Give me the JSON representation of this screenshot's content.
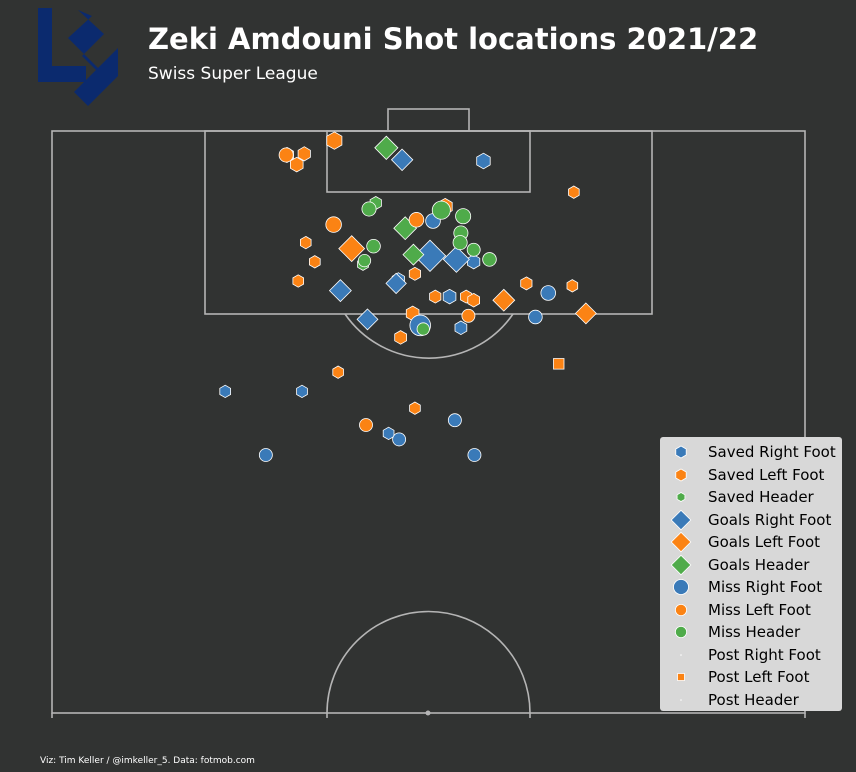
{
  "header": {
    "title": "Zeki Amdouni Shot locations 2021/22",
    "subtitle": "Swiss Super League"
  },
  "footer": {
    "credit": "Viz: Tim Keller / @imkeller_5. Data: fotmob.com"
  },
  "logo": {
    "name": "fc-lausanne-sport-logo",
    "color": "#0b2a6e"
  },
  "colors": {
    "background": "#313332",
    "lines": "#b5b5b5",
    "right_foot": "#3a7ab8",
    "left_foot": "#fb8314",
    "header": "#4fab4a",
    "legend_bg": "#d8d8d8"
  },
  "chart_data": {
    "type": "scatter",
    "pitch": "half-pitch-vertical",
    "x_range": [
      0,
      100
    ],
    "y_range": [
      50,
      103
    ],
    "encoding": {
      "marker": {
        "Saved": "hexagon",
        "Goals": "diamond",
        "Miss": "circle",
        "Post": "square"
      },
      "color": {
        "Right Foot": "right_foot",
        "Left Foot": "left_foot",
        "Header": "header"
      },
      "size": "xG"
    },
    "legend": [
      "Saved Right Foot",
      "Saved Left Foot",
      "Saved Header",
      "Goals Right Foot",
      "Goals Left Foot",
      "Goals Header",
      "Miss Right Foot",
      "Miss Left Foot",
      "Miss Header",
      "Post Right Foot",
      "Post Left Foot",
      "Post Header"
    ],
    "legend_position": "lower-right",
    "shots": [
      {
        "x": 31.2,
        "y": 96.5,
        "outcome": "Saved",
        "body": "Left Foot",
        "xg": 0.08
      },
      {
        "x": 33.5,
        "y": 96.6,
        "outcome": "Saved",
        "body": "Left Foot",
        "xg": 0.06
      },
      {
        "x": 32.5,
        "y": 95.7,
        "outcome": "Saved",
        "body": "Left Foot",
        "xg": 0.07
      },
      {
        "x": 37.5,
        "y": 97.7,
        "outcome": "Saved",
        "body": "Left Foot",
        "xg": 0.14
      },
      {
        "x": 33.7,
        "y": 89.2,
        "outcome": "Saved",
        "body": "Left Foot",
        "xg": 0.03
      },
      {
        "x": 34.9,
        "y": 87.6,
        "outcome": "Saved",
        "body": "Left Foot",
        "xg": 0.03
      },
      {
        "x": 32.7,
        "y": 86.0,
        "outcome": "Saved",
        "body": "Left Foot",
        "xg": 0.03
      },
      {
        "x": 48.2,
        "y": 86.6,
        "outcome": "Saved",
        "body": "Left Foot",
        "xg": 0.04
      },
      {
        "x": 52.2,
        "y": 92.2,
        "outcome": "Saved",
        "body": "Left Foot",
        "xg": 0.11
      },
      {
        "x": 50.9,
        "y": 84.7,
        "outcome": "Saved",
        "body": "Left Foot",
        "xg": 0.04
      },
      {
        "x": 55.0,
        "y": 84.7,
        "outcome": "Saved",
        "body": "Left Foot",
        "xg": 0.04
      },
      {
        "x": 56.0,
        "y": 84.4,
        "outcome": "Saved",
        "body": "Left Foot",
        "xg": 0.05
      },
      {
        "x": 47.9,
        "y": 83.3,
        "outcome": "Saved",
        "body": "Left Foot",
        "xg": 0.07
      },
      {
        "x": 46.3,
        "y": 81.3,
        "outcome": "Saved",
        "body": "Left Foot",
        "xg": 0.05
      },
      {
        "x": 63.0,
        "y": 85.8,
        "outcome": "Saved",
        "body": "Left Foot",
        "xg": 0.04
      },
      {
        "x": 69.3,
        "y": 93.4,
        "outcome": "Saved",
        "body": "Left Foot",
        "xg": 0.03
      },
      {
        "x": 69.1,
        "y": 85.6,
        "outcome": "Saved",
        "body": "Left Foot",
        "xg": 0.03
      },
      {
        "x": 38.0,
        "y": 78.4,
        "outcome": "Saved",
        "body": "Left Foot",
        "xg": 0.03
      },
      {
        "x": 48.2,
        "y": 75.4,
        "outcome": "Saved",
        "body": "Left Foot",
        "xg": 0.03
      },
      {
        "x": 57.3,
        "y": 96.0,
        "outcome": "Saved",
        "body": "Right Foot",
        "xg": 0.09
      },
      {
        "x": 46.0,
        "y": 86.1,
        "outcome": "Saved",
        "body": "Right Foot",
        "xg": 0.06
      },
      {
        "x": 52.8,
        "y": 84.7,
        "outcome": "Saved",
        "body": "Right Foot",
        "xg": 0.07
      },
      {
        "x": 56.0,
        "y": 87.6,
        "outcome": "Saved",
        "body": "Right Foot",
        "xg": 0.06
      },
      {
        "x": 54.3,
        "y": 82.1,
        "outcome": "Saved",
        "body": "Right Foot",
        "xg": 0.05
      },
      {
        "x": 23.0,
        "y": 76.8,
        "outcome": "Saved",
        "body": "Right Foot",
        "xg": 0.03
      },
      {
        "x": 33.2,
        "y": 76.8,
        "outcome": "Saved",
        "body": "Right Foot",
        "xg": 0.03
      },
      {
        "x": 44.7,
        "y": 73.3,
        "outcome": "Saved",
        "body": "Right Foot",
        "xg": 0.03
      },
      {
        "x": 43.0,
        "y": 92.5,
        "outcome": "Saved",
        "body": "Header",
        "xg": 0.04
      },
      {
        "x": 41.3,
        "y": 87.4,
        "outcome": "Saved",
        "body": "Header",
        "xg": 0.03
      },
      {
        "x": 46.5,
        "y": 96.1,
        "outcome": "Goals",
        "body": "Right Foot",
        "xg": 0.11
      },
      {
        "x": 50.2,
        "y": 88.1,
        "outcome": "Goals",
        "body": "Right Foot",
        "xg": 0.4
      },
      {
        "x": 53.7,
        "y": 87.8,
        "outcome": "Goals",
        "body": "Right Foot",
        "xg": 0.22
      },
      {
        "x": 38.3,
        "y": 85.2,
        "outcome": "Goals",
        "body": "Right Foot",
        "xg": 0.12
      },
      {
        "x": 45.7,
        "y": 85.8,
        "outcome": "Goals",
        "body": "Right Foot",
        "xg": 0.09
      },
      {
        "x": 41.9,
        "y": 82.8,
        "outcome": "Goals",
        "body": "Right Foot",
        "xg": 0.1
      },
      {
        "x": 39.8,
        "y": 88.7,
        "outcome": "Goals",
        "body": "Left Foot",
        "xg": 0.22
      },
      {
        "x": 60.0,
        "y": 84.4,
        "outcome": "Goals",
        "body": "Left Foot",
        "xg": 0.12
      },
      {
        "x": 70.9,
        "y": 83.3,
        "outcome": "Goals",
        "body": "Left Foot",
        "xg": 0.1
      },
      {
        "x": 44.4,
        "y": 97.1,
        "outcome": "Goals",
        "body": "Header",
        "xg": 0.15
      },
      {
        "x": 46.9,
        "y": 90.4,
        "outcome": "Goals",
        "body": "Header",
        "xg": 0.14
      },
      {
        "x": 48.0,
        "y": 88.2,
        "outcome": "Goals",
        "body": "Header",
        "xg": 0.1
      },
      {
        "x": 50.6,
        "y": 91.0,
        "outcome": "Miss",
        "body": "Right Foot",
        "xg": 0.07
      },
      {
        "x": 48.9,
        "y": 82.3,
        "outcome": "Miss",
        "body": "Right Foot",
        "xg": 0.25
      },
      {
        "x": 65.9,
        "y": 85.0,
        "outcome": "Miss",
        "body": "Right Foot",
        "xg": 0.07
      },
      {
        "x": 64.2,
        "y": 83.0,
        "outcome": "Miss",
        "body": "Right Foot",
        "xg": 0.05
      },
      {
        "x": 53.5,
        "y": 74.4,
        "outcome": "Miss",
        "body": "Right Foot",
        "xg": 0.04
      },
      {
        "x": 46.1,
        "y": 72.8,
        "outcome": "Miss",
        "body": "Right Foot",
        "xg": 0.04
      },
      {
        "x": 28.4,
        "y": 71.5,
        "outcome": "Miss",
        "body": "Right Foot",
        "xg": 0.04
      },
      {
        "x": 56.1,
        "y": 71.5,
        "outcome": "Miss",
        "body": "Right Foot",
        "xg": 0.04
      },
      {
        "x": 31.1,
        "y": 96.5,
        "outcome": "Miss",
        "body": "Left Foot",
        "xg": 0.06
      },
      {
        "x": 37.4,
        "y": 90.7,
        "outcome": "Miss",
        "body": "Left Foot",
        "xg": 0.09
      },
      {
        "x": 48.4,
        "y": 91.1,
        "outcome": "Miss",
        "body": "Left Foot",
        "xg": 0.07
      },
      {
        "x": 55.3,
        "y": 83.1,
        "outcome": "Miss",
        "body": "Left Foot",
        "xg": 0.04
      },
      {
        "x": 41.7,
        "y": 74.0,
        "outcome": "Miss",
        "body": "Left Foot",
        "xg": 0.04
      },
      {
        "x": 42.1,
        "y": 92.0,
        "outcome": "Miss",
        "body": "Header",
        "xg": 0.06
      },
      {
        "x": 51.7,
        "y": 91.9,
        "outcome": "Miss",
        "body": "Header",
        "xg": 0.16
      },
      {
        "x": 54.6,
        "y": 91.4,
        "outcome": "Miss",
        "body": "Header",
        "xg": 0.08
      },
      {
        "x": 54.3,
        "y": 90.0,
        "outcome": "Miss",
        "body": "Header",
        "xg": 0.06
      },
      {
        "x": 54.2,
        "y": 89.2,
        "outcome": "Miss",
        "body": "Header",
        "xg": 0.06
      },
      {
        "x": 56.0,
        "y": 88.6,
        "outcome": "Miss",
        "body": "Header",
        "xg": 0.04
      },
      {
        "x": 58.1,
        "y": 87.8,
        "outcome": "Miss",
        "body": "Header",
        "xg": 0.05
      },
      {
        "x": 42.7,
        "y": 88.9,
        "outcome": "Miss",
        "body": "Header",
        "xg": 0.05
      },
      {
        "x": 41.5,
        "y": 87.7,
        "outcome": "Miss",
        "body": "Header",
        "xg": 0.03
      },
      {
        "x": 49.3,
        "y": 82.0,
        "outcome": "Miss",
        "body": "Header",
        "xg": 0.03
      },
      {
        "x": 67.3,
        "y": 79.1,
        "outcome": "Post",
        "body": "Left Foot",
        "xg": 0.03
      }
    ]
  }
}
